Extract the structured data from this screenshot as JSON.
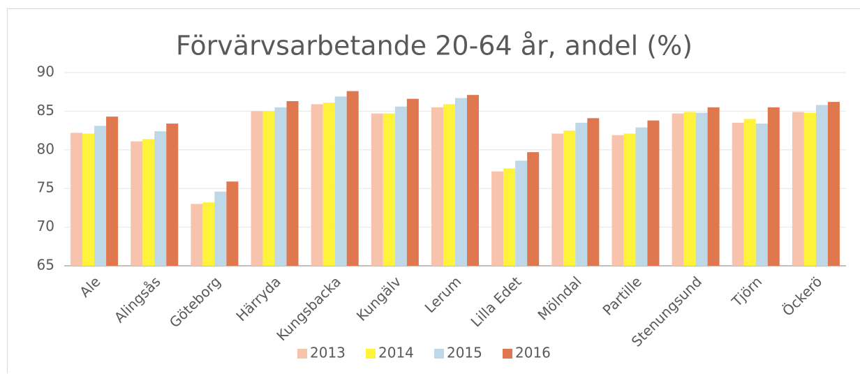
{
  "chart_data": {
    "type": "bar",
    "title": "Förvärvsarbetande 20-64 år, andel (%)",
    "categories": [
      "Ale",
      "Alingsås",
      "Göteborg",
      "Härryda",
      "Kungsbacka",
      "Kungälv",
      "Lerum",
      "Lilla Edet",
      "Mölndal",
      "Partille",
      "Stenungsund",
      "Tjörn",
      "Öckerö"
    ],
    "series": [
      {
        "name": "2013",
        "color": "#f8c3ad",
        "values": [
          82.2,
          81.1,
          73.0,
          85.0,
          85.9,
          84.7,
          85.5,
          77.2,
          82.1,
          81.9,
          84.7,
          83.5,
          84.9
        ]
      },
      {
        "name": "2014",
        "color": "#fff23a",
        "values": [
          82.1,
          81.4,
          73.2,
          85.0,
          86.1,
          84.7,
          85.9,
          77.6,
          82.5,
          82.1,
          84.9,
          84.0,
          84.8
        ]
      },
      {
        "name": "2015",
        "color": "#bed8e7",
        "values": [
          83.1,
          82.4,
          74.6,
          85.5,
          86.9,
          85.6,
          86.7,
          78.6,
          83.5,
          82.9,
          84.8,
          83.4,
          85.8
        ]
      },
      {
        "name": "2016",
        "color": "#e0784f",
        "values": [
          84.3,
          83.4,
          75.9,
          86.3,
          87.6,
          86.6,
          87.1,
          79.7,
          84.1,
          83.8,
          85.5,
          85.5,
          86.2
        ]
      }
    ],
    "ylim": [
      65,
      90
    ],
    "yticks": [
      65,
      70,
      75,
      80,
      85,
      90
    ],
    "grid": true,
    "legend": "bottom"
  }
}
